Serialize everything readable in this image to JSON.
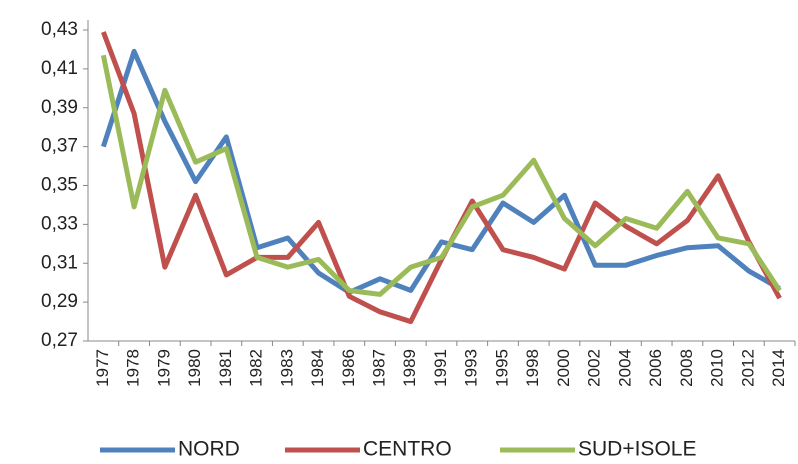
{
  "chart_data": {
    "type": "line",
    "categories": [
      "1977",
      "1978",
      "1979",
      "1980",
      "1981",
      "1982",
      "1983",
      "1984",
      "1986",
      "1987",
      "1989",
      "1991",
      "1993",
      "1995",
      "1998",
      "2000",
      "2002",
      "2004",
      "2006",
      "2008",
      "2010",
      "2012",
      "2014"
    ],
    "series": [
      {
        "name": "NORD",
        "color": "#4f81bd",
        "values": [
          0.37,
          0.419,
          0.383,
          0.352,
          0.375,
          0.318,
          0.323,
          0.305,
          0.295,
          0.302,
          0.296,
          0.321,
          0.317,
          0.341,
          0.331,
          0.345,
          0.309,
          0.309,
          0.314,
          0.318,
          0.319,
          0.306,
          0.297
        ]
      },
      {
        "name": "CENTRO",
        "color": "#c0504d",
        "values": [
          0.429,
          0.387,
          0.308,
          0.345,
          0.304,
          0.313,
          0.313,
          0.331,
          0.293,
          0.285,
          0.28,
          0.312,
          0.342,
          0.317,
          0.313,
          0.307,
          0.341,
          0.329,
          0.32,
          0.332,
          0.355,
          0.321,
          0.292
        ]
      },
      {
        "name": "SUD+ISOLE",
        "color": "#9bbb59",
        "values": [
          0.417,
          0.339,
          0.399,
          0.362,
          0.369,
          0.313,
          0.308,
          0.312,
          0.296,
          0.294,
          0.308,
          0.313,
          0.339,
          0.345,
          0.363,
          0.333,
          0.319,
          0.333,
          0.328,
          0.347,
          0.323,
          0.32,
          0.296
        ]
      }
    ],
    "ylim": [
      0.27,
      0.43
    ],
    "yticks": [
      {
        "value": 0.27,
        "label": "0,27"
      },
      {
        "value": 0.29,
        "label": "0,29"
      },
      {
        "value": 0.31,
        "label": "0,31"
      },
      {
        "value": 0.33,
        "label": "0,33"
      },
      {
        "value": 0.35,
        "label": "0,35"
      },
      {
        "value": 0.37,
        "label": "0,37"
      },
      {
        "value": 0.39,
        "label": "0,39"
      },
      {
        "value": 0.41,
        "label": "0,41"
      },
      {
        "value": 0.43,
        "label": "0,43"
      }
    ],
    "grid": false,
    "legend": "bottom"
  }
}
